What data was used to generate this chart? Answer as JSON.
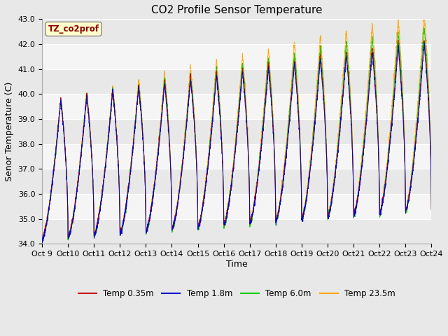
{
  "title": "CO2 Profile Sensor Temperature",
  "ylabel": "Senor Temperature (C)",
  "xlabel": "Time",
  "ylim": [
    34.0,
    43.0
  ],
  "yticks": [
    34.0,
    35.0,
    36.0,
    37.0,
    38.0,
    39.0,
    40.0,
    41.0,
    42.0,
    43.0
  ],
  "xtick_labels": [
    "Oct 9",
    "Oct 10",
    "Oct 11",
    "Oct 12",
    "Oct 13",
    "Oct 14",
    "Oct 15",
    "Oct 16",
    "Oct 17",
    "Oct 18",
    "Oct 19",
    "Oct 20",
    "Oct 21",
    "Oct 22",
    "Oct 23",
    "Oct 24"
  ],
  "annotation_text": "TZ_co2prof",
  "annotation_color": "#8B0000",
  "annotation_bg": "#FFFFCC",
  "legend_entries": [
    "Temp 0.35m",
    "Temp 1.8m",
    "Temp 6.0m",
    "Temp 23.5m"
  ],
  "line_colors": [
    "#CC0000",
    "#0000CC",
    "#00CC00",
    "#FFA500"
  ],
  "background_color": "#E8E8E8",
  "plot_bg_color": "#E8E8E8",
  "white_band_color": "#F5F5F5",
  "n_days": 15,
  "title_fontsize": 11,
  "axis_fontsize": 9,
  "tick_fontsize": 8
}
